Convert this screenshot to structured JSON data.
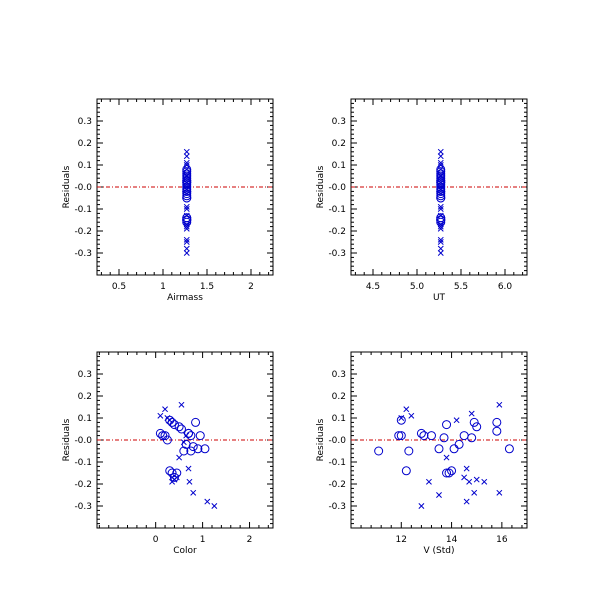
{
  "colors": {
    "points": "#0000cc",
    "zero_line": "#cc0000",
    "axes": "#000000",
    "background": "#ffffff"
  },
  "chart_data": [
    {
      "type": "scatter",
      "title": "",
      "xlabel": "Airmass",
      "ylabel": "Residuals",
      "xlim": [
        0.25,
        2.25
      ],
      "ylim": [
        -0.4,
        0.4
      ],
      "xticks": [
        0.5,
        1.0,
        1.5,
        2.0
      ],
      "xtick_labels": [
        "0.5",
        "1",
        "1.5",
        "2"
      ],
      "yticks": [
        -0.3,
        -0.2,
        -0.1,
        0.0,
        0.1,
        0.2,
        0.3
      ],
      "ytick_labels": [
        "-0.3",
        "-0.2",
        "-0.1",
        "-0.0",
        "0.1",
        "0.2",
        "0.3"
      ],
      "reference_line_y": 0.0,
      "grid": false,
      "series": [
        {
          "marker": "circle",
          "x": [
            1.27,
            1.27,
            1.27,
            1.27,
            1.27,
            1.27,
            1.27,
            1.27,
            1.27,
            1.27,
            1.27,
            1.27,
            1.27,
            1.27,
            1.27,
            1.27,
            1.27,
            1.27,
            1.27,
            1.27,
            1.27,
            1.27,
            1.27,
            1.27
          ],
          "y": [
            0.08,
            0.07,
            0.06,
            0.05,
            0.04,
            0.03,
            0.02,
            0.02,
            0.01,
            0.0,
            -0.01,
            -0.02,
            -0.03,
            -0.04,
            -0.05,
            -0.05,
            -0.14,
            -0.14,
            -0.15,
            -0.15,
            -0.15,
            -0.16,
            -0.02,
            0.03
          ]
        },
        {
          "marker": "cross",
          "x": [
            1.27,
            1.27,
            1.27,
            1.27,
            1.27,
            1.27,
            1.27,
            1.27,
            1.27,
            1.27,
            1.27,
            1.27,
            1.27,
            1.27,
            1.27,
            1.27,
            1.27,
            1.27
          ],
          "y": [
            0.16,
            0.14,
            0.11,
            0.1,
            0.08,
            0.05,
            0.02,
            -0.01,
            -0.09,
            -0.1,
            -0.13,
            -0.17,
            -0.18,
            -0.19,
            -0.24,
            -0.25,
            -0.28,
            -0.3
          ]
        }
      ]
    },
    {
      "type": "scatter",
      "title": "",
      "xlabel": "UT",
      "ylabel": "Residuals",
      "xlim": [
        4.25,
        6.25
      ],
      "ylim": [
        -0.4,
        0.4
      ],
      "xticks": [
        4.5,
        5.0,
        5.5,
        6.0
      ],
      "xtick_labels": [
        "4.5",
        "5.0",
        "5.5",
        "6.0"
      ],
      "yticks": [
        -0.3,
        -0.2,
        -0.1,
        0.0,
        0.1,
        0.2,
        0.3
      ],
      "ytick_labels": [
        "-0.3",
        "-0.2",
        "-0.1",
        "-0.0",
        "0.1",
        "0.2",
        "0.3"
      ],
      "reference_line_y": 0.0,
      "grid": false,
      "series": [
        {
          "marker": "circle",
          "x": [
            5.27,
            5.27,
            5.27,
            5.27,
            5.27,
            5.27,
            5.27,
            5.27,
            5.27,
            5.27,
            5.27,
            5.27,
            5.27,
            5.27,
            5.27,
            5.27,
            5.27,
            5.27,
            5.27,
            5.27,
            5.27,
            5.27,
            5.27,
            5.27
          ],
          "y": [
            0.08,
            0.07,
            0.06,
            0.05,
            0.04,
            0.03,
            0.02,
            0.02,
            0.01,
            0.0,
            -0.01,
            -0.02,
            -0.03,
            -0.04,
            -0.05,
            -0.05,
            -0.14,
            -0.14,
            -0.15,
            -0.15,
            -0.15,
            -0.16,
            -0.02,
            0.03
          ]
        },
        {
          "marker": "cross",
          "x": [
            5.27,
            5.27,
            5.27,
            5.27,
            5.27,
            5.27,
            5.27,
            5.27,
            5.27,
            5.27,
            5.27,
            5.27,
            5.27,
            5.27,
            5.27,
            5.27,
            5.27,
            5.27
          ],
          "y": [
            0.16,
            0.14,
            0.11,
            0.1,
            0.08,
            0.05,
            0.02,
            -0.01,
            -0.09,
            -0.1,
            -0.13,
            -0.17,
            -0.18,
            -0.19,
            -0.24,
            -0.25,
            -0.28,
            -0.3
          ]
        }
      ]
    },
    {
      "type": "scatter",
      "title": "",
      "xlabel": "Color",
      "ylabel": "Residuals",
      "xlim": [
        -1.25,
        2.5
      ],
      "ylim": [
        -0.4,
        0.4
      ],
      "xticks": [
        0,
        1,
        2
      ],
      "xtick_labels": [
        "0",
        "1",
        "2"
      ],
      "yticks": [
        -0.3,
        -0.2,
        -0.1,
        0.0,
        0.1,
        0.2,
        0.3
      ],
      "ytick_labels": [
        "-0.3",
        "-0.2",
        "-0.1",
        "-0.0",
        "0.1",
        "0.2",
        "0.3"
      ],
      "reference_line_y": 0.0,
      "grid": false,
      "series": [
        {
          "marker": "circle",
          "x": [
            0.1,
            0.15,
            0.2,
            0.3,
            0.35,
            0.4,
            0.5,
            0.55,
            0.6,
            0.7,
            0.75,
            0.8,
            0.85,
            0.95,
            1.05,
            0.3,
            0.35,
            0.4,
            0.45,
            0.65,
            0.7,
            0.25,
            0.75,
            0.9
          ],
          "y": [
            0.03,
            0.02,
            0.02,
            0.09,
            0.08,
            0.07,
            0.06,
            0.05,
            -0.05,
            0.03,
            0.02,
            -0.03,
            0.08,
            0.02,
            -0.04,
            -0.14,
            -0.15,
            -0.17,
            -0.15,
            -0.02,
            0.03,
            0.0,
            -0.05,
            -0.04
          ]
        },
        {
          "marker": "cross",
          "x": [
            0.1,
            0.2,
            0.25,
            0.3,
            0.35,
            0.4,
            0.45,
            0.55,
            0.65,
            0.72,
            0.8,
            1.1,
            1.25,
            0.6,
            0.7,
            0.4,
            0.35,
            0.5
          ],
          "y": [
            0.11,
            0.14,
            0.1,
            0.09,
            -0.19,
            -0.18,
            -0.17,
            0.16,
            0.02,
            -0.19,
            -0.24,
            -0.28,
            -0.3,
            -0.01,
            -0.13,
            -0.18,
            -0.17,
            -0.08
          ]
        }
      ]
    },
    {
      "type": "scatter",
      "title": "",
      "xlabel": "V (Std)",
      "ylabel": "Residuals",
      "xlim": [
        10,
        17
      ],
      "ylim": [
        -0.4,
        0.4
      ],
      "xticks": [
        12,
        14,
        16
      ],
      "xtick_labels": [
        "12",
        "14",
        "16"
      ],
      "yticks": [
        -0.3,
        -0.2,
        -0.1,
        0.0,
        0.1,
        0.2,
        0.3
      ],
      "ytick_labels": [
        "-0.3",
        "-0.2",
        "-0.1",
        "-0.0",
        "0.1",
        "0.2",
        "0.3"
      ],
      "reference_line_y": 0.0,
      "grid": false,
      "series": [
        {
          "marker": "circle",
          "x": [
            11.1,
            11.9,
            12.0,
            12.2,
            12.3,
            12.8,
            12.9,
            13.2,
            13.5,
            13.7,
            13.8,
            13.9,
            14.0,
            14.1,
            14.3,
            14.5,
            14.8,
            14.9,
            15.0,
            15.8,
            16.3,
            12.0,
            13.8,
            15.8
          ],
          "y": [
            -0.05,
            0.02,
            0.02,
            -0.14,
            -0.05,
            0.03,
            0.02,
            0.02,
            -0.04,
            0.01,
            0.07,
            -0.15,
            -0.14,
            -0.04,
            -0.02,
            0.02,
            0.01,
            0.08,
            0.06,
            0.04,
            -0.04,
            0.09,
            -0.15,
            0.08
          ]
        },
        {
          "marker": "cross",
          "x": [
            12.0,
            12.2,
            12.4,
            12.8,
            13.1,
            13.5,
            14.2,
            14.5,
            14.6,
            14.7,
            14.8,
            14.9,
            15.0,
            15.3,
            15.9,
            15.9,
            14.6,
            13.8
          ],
          "y": [
            0.1,
            0.14,
            0.11,
            -0.3,
            -0.19,
            -0.25,
            0.09,
            -0.17,
            -0.28,
            -0.19,
            0.12,
            -0.24,
            -0.18,
            -0.19,
            0.16,
            -0.24,
            -0.13,
            -0.08
          ]
        }
      ]
    }
  ]
}
